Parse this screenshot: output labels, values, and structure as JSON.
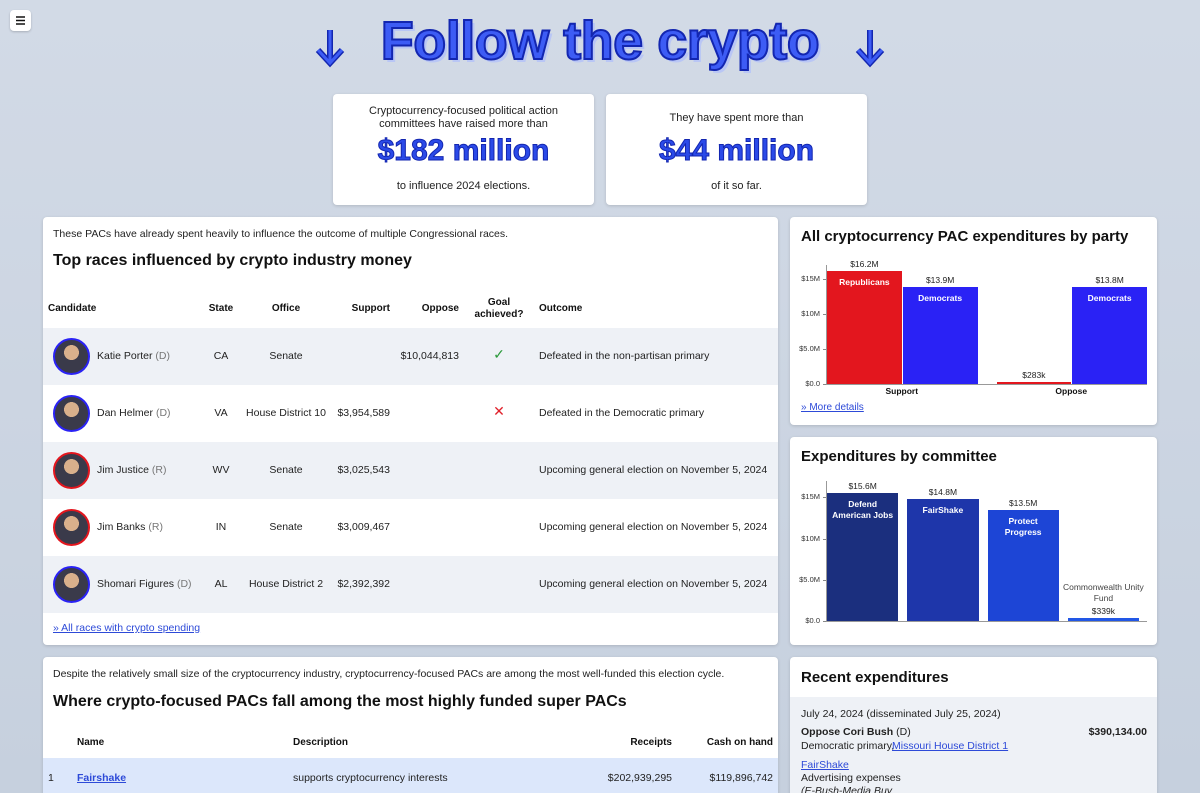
{
  "header": {
    "title": "Follow the crypto"
  },
  "stats": [
    {
      "lead": "Cryptocurrency-focused political action committees have raised more than",
      "figure": "$182 million",
      "tail": "to influence 2024 elections."
    },
    {
      "lead": "They have spent more than",
      "figure": "$44 million",
      "tail": "of it so far."
    }
  ],
  "races": {
    "intro": "These PACs have already spent heavily to influence the outcome of multiple Congressional races.",
    "title": "Top races influenced by crypto industry money",
    "columns": [
      "Candidate",
      "State",
      "Office",
      "Support",
      "Oppose",
      "Goal achieved?",
      "Outcome"
    ],
    "rows": [
      {
        "name": "Katie Porter",
        "party": "(D)",
        "state": "CA",
        "office": "Senate",
        "oppose": "$10,044,813",
        "goal": "✓",
        "outcome": "Defeated in the non-partisan primary"
      },
      {
        "name": "Dan Helmer",
        "party": "(D)",
        "state": "VA",
        "office": "House District 10",
        "support": "$3,954,589",
        "goal": "✕",
        "outcome": "Defeated in the Democratic primary"
      },
      {
        "name": "Jim Justice",
        "party": "(R)",
        "state": "WV",
        "office": "Senate",
        "support": "$3,025,543",
        "outcome": "Upcoming general election on November 5, 2024"
      },
      {
        "name": "Jim Banks",
        "party": "(R)",
        "state": "IN",
        "office": "Senate",
        "support": "$3,009,467",
        "outcome": "Upcoming general election on November 5, 2024"
      },
      {
        "name": "Shomari Figures",
        "party": "(D)",
        "state": "AL",
        "office": "House District 2",
        "support": "$2,392,392",
        "outcome": "Upcoming general election on November 5, 2024"
      }
    ],
    "link": "» All races with crypto spending"
  },
  "chart_data": [
    {
      "type": "bar",
      "title": "All cryptocurrency PAC expenditures by party",
      "categories": [
        "Support",
        "Oppose"
      ],
      "series": [
        {
          "name": "Republicans",
          "color": "#e3161e",
          "values": [
            16.2,
            0.283
          ],
          "value_labels": [
            "$16.2M",
            "$283k"
          ]
        },
        {
          "name": "Democrats",
          "color": "#2a22f5",
          "values": [
            13.9,
            13.8
          ],
          "value_labels": [
            "$13.9M",
            "$13.8M"
          ]
        }
      ],
      "ylim": [
        0,
        17
      ],
      "yticks": [
        {
          "value": 0,
          "label": "$0.0"
        },
        {
          "value": 5,
          "label": "$5.0M"
        },
        {
          "value": 10,
          "label": "$10M"
        },
        {
          "value": 15,
          "label": "$15M"
        }
      ],
      "link": "» More details"
    },
    {
      "type": "bar",
      "title": "Expenditures by committee",
      "categories": [
        "Defend American Jobs",
        "FairShake",
        "Protect Progress",
        "Commonwealth Unity Fund"
      ],
      "values": [
        15.6,
        14.8,
        13.5,
        0.339
      ],
      "value_labels": [
        "$15.6M",
        "$14.8M",
        "$13.5M",
        "$339k"
      ],
      "colors": [
        "#1b2f7e",
        "#1e36aa",
        "#1d45d6",
        "#2257e6"
      ],
      "ylim": [
        0,
        17
      ],
      "yticks": [
        {
          "value": 0,
          "label": "$0.0"
        },
        {
          "value": 5,
          "label": "$5.0M"
        },
        {
          "value": 10,
          "label": "$10M"
        },
        {
          "value": 15,
          "label": "$15M"
        }
      ]
    }
  ],
  "recent": {
    "title": "Recent expenditures",
    "items": [
      {
        "date": "July 24, 2024 (disseminated July 25, 2024)",
        "target": "Oppose Cori Bush",
        "party": "(D)",
        "amount": "$390,134.00",
        "race": "Democratic primary,",
        "district": "Missouri House District 1",
        "committee": "FairShake",
        "purpose": "Advertising expenses",
        "memo": "(E-Bush-Media Buy"
      }
    ]
  },
  "superpacs": {
    "intro": "Despite the relatively small size of the cryptocurrency industry, cryptocurrency-focused PACs are among the most well-funded this election cycle.",
    "title": "Where crypto-focused PACs fall among the most highly funded super PACs",
    "columns": [
      "Name",
      "Description",
      "Receipts",
      "Cash on hand"
    ],
    "rows": [
      {
        "rank": "1",
        "name": "Fairshake",
        "description": "supports cryptocurrency interests",
        "receipts": "$202,939,295",
        "cash": "$119,896,742"
      }
    ]
  }
}
